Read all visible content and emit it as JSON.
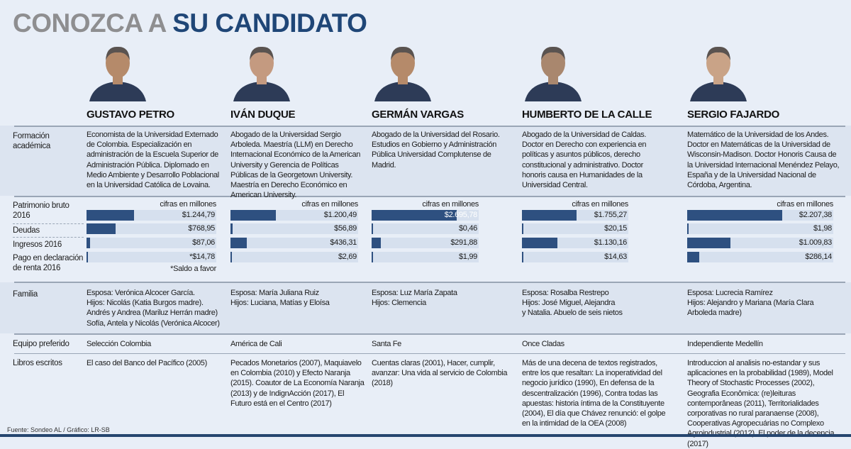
{
  "title": {
    "part1": "CONOZCA A",
    "part2": "SU CANDIDATO"
  },
  "row_labels": {
    "formacion": "Formación académica",
    "patrimonio": "Patrimonio bruto 2016",
    "deudas": "Deudas",
    "ingresos": "Ingresos 2016",
    "pago": "Pago en declaración de renta 2016",
    "familia": "Familia",
    "equipo": "Equipo preferido",
    "libros": "Libros escritos"
  },
  "unit_label": "cifras en millones",
  "footnote_petro": "*Saldo a favor",
  "source": "Fuente: Sondeo AL / Gráfico: LR-SB",
  "colors": {
    "title_gray": "#8e8e90",
    "title_blue": "#1f4677",
    "bar": "#2e5080",
    "track": "#d6e0ee"
  },
  "candidates": [
    {
      "name": "GUSTAVO PETRO",
      "formacion": "Economista de la Universidad Externado de Colombia. Especialización en administración de la Escuela Superior de Administración Pública. Diplomado en Medio Ambiente y Desarrollo Poblacional en la Universidad Católica de Lovaina.",
      "values": {
        "patrimonio": 1244.79,
        "deudas": 768.95,
        "ingresos": 87.06,
        "pago": 14.78
      },
      "labels": {
        "patrimonio": "$1.244,79",
        "deudas": "$768,95",
        "ingresos": "$87,06",
        "pago": "*$14,78"
      },
      "familia": "Esposa: Verónica Alcocer García.\nHijos: Nicolás (Katia Burgos madre).\nAndrés y Andrea (Mariluz Herrán madre)\nSofía, Antela y Nicolás (Verónica Alcocer)",
      "equipo": "Selección Colombia",
      "libros": "El caso del Banco del Pacífico (2005)"
    },
    {
      "name": "IVÁN DUQUE",
      "formacion": "Abogado de la Universidad Sergio Arboleda. Maestría (LLM) en Derecho Internacional Económico de la American University y Gerencia de Políticas Públicas de la Georgetown University. Maestría en Derecho Económico en American University.",
      "values": {
        "patrimonio": 1200.49,
        "deudas": 56.89,
        "ingresos": 436.31,
        "pago": 2.69
      },
      "labels": {
        "patrimonio": "$1.200,49",
        "deudas": "$56,89",
        "ingresos": "$436,31",
        "pago": "$2,69"
      },
      "familia": "Esposa: María Juliana Ruiz\nHijos: Luciana, Matías y Eloísa",
      "equipo": "América de Cali",
      "libros": "Pecados Monetarios (2007), Maquiavelo en Colombia (2010) y Efecto Naranja (2015). Coautor de La Economía Naranja (2013) y de IndignAcción (2017), El Futuro está en el Centro (2017)"
    },
    {
      "name": "GERMÁN VARGAS",
      "formacion": "Abogado de la Universidad del Rosario. Estudios en Gobierno y Administración Pública Universidad Complutense de Madrid.",
      "values": {
        "patrimonio": 2695.78,
        "deudas": 0.46,
        "ingresos": 291.88,
        "pago": 1.99
      },
      "labels": {
        "patrimonio": "$2.695,78",
        "deudas": "$0,46",
        "ingresos": "$291,88",
        "pago": "$1,99"
      },
      "familia": "Esposa: Luz María Zapata\nHijos: Clemencia",
      "equipo": "Santa Fe",
      "libros": "Cuentas claras (2001), Hacer, cumplir, avanzar: Una vida al servicio de Colombia (2018)"
    },
    {
      "name": "HUMBERTO DE LA CALLE",
      "formacion": "Abogado de la Universidad de Caldas. Doctor en Derecho con experiencia en políticas y asuntos públicos, derecho constitucional y administrativo. Doctor honoris causa en Humanidades de la Universidad Central.",
      "values": {
        "patrimonio": 1755.27,
        "deudas": 20.15,
        "ingresos": 1130.16,
        "pago": 14.63
      },
      "labels": {
        "patrimonio": "$1.755,27",
        "deudas": "$20,15",
        "ingresos": "$1.130,16",
        "pago": "$14,63"
      },
      "familia": "Esposa: Rosalba Restrepo\nHijos: José Miguel, Alejandra\n y Natalia. Abuelo de seis nietos",
      "equipo": "Once Cladas",
      "libros": "Más de una decena de textos registrados, entre los que resaltan: La inoperatividad del negocio jurídico (1990), En defensa de la descentralización (1996), Contra todas las apuestas: historia íntima de la Constituyente (2004), El día que Chávez renunció: el golpe en la intimidad de la OEA (2008)"
    },
    {
      "name": "SERGIO FAJARDO",
      "formacion": "Matemático de la Universidad de los Andes. Doctor en Matemáticas de la Universidad de Wisconsin-Madison. Doctor Honoris Causa de la Universidad Internacional Menéndez Pelayo, España y de la Universidad Nacional de Córdoba, Argentina.",
      "values": {
        "patrimonio": 2207.38,
        "deudas": 1.98,
        "ingresos": 1009.83,
        "pago": 286.14
      },
      "labels": {
        "patrimonio": "$2.207,38",
        "deudas": "$1,98",
        "ingresos": "$1.009,83",
        "pago": "$286,14"
      },
      "familia": "Esposa: Lucrecia Ramírez\nHijos: Alejandro y Mariana (María Clara Arboleda madre)",
      "equipo": "Independiente Medellín",
      "libros": "Introduccion al analisis no-estandar y sus aplicaciones en la probabilidad (1989), Model Theory of Stochastic Processes (2002), Geografia Econômica: (re)leituras contemporâneas (2011), Territorialidades corporativas no rural paranaense (2008), Cooperativas Agropecuárias no Complexo Agroindustrial (2012), El poder de la decencia (2017)"
    }
  ]
}
